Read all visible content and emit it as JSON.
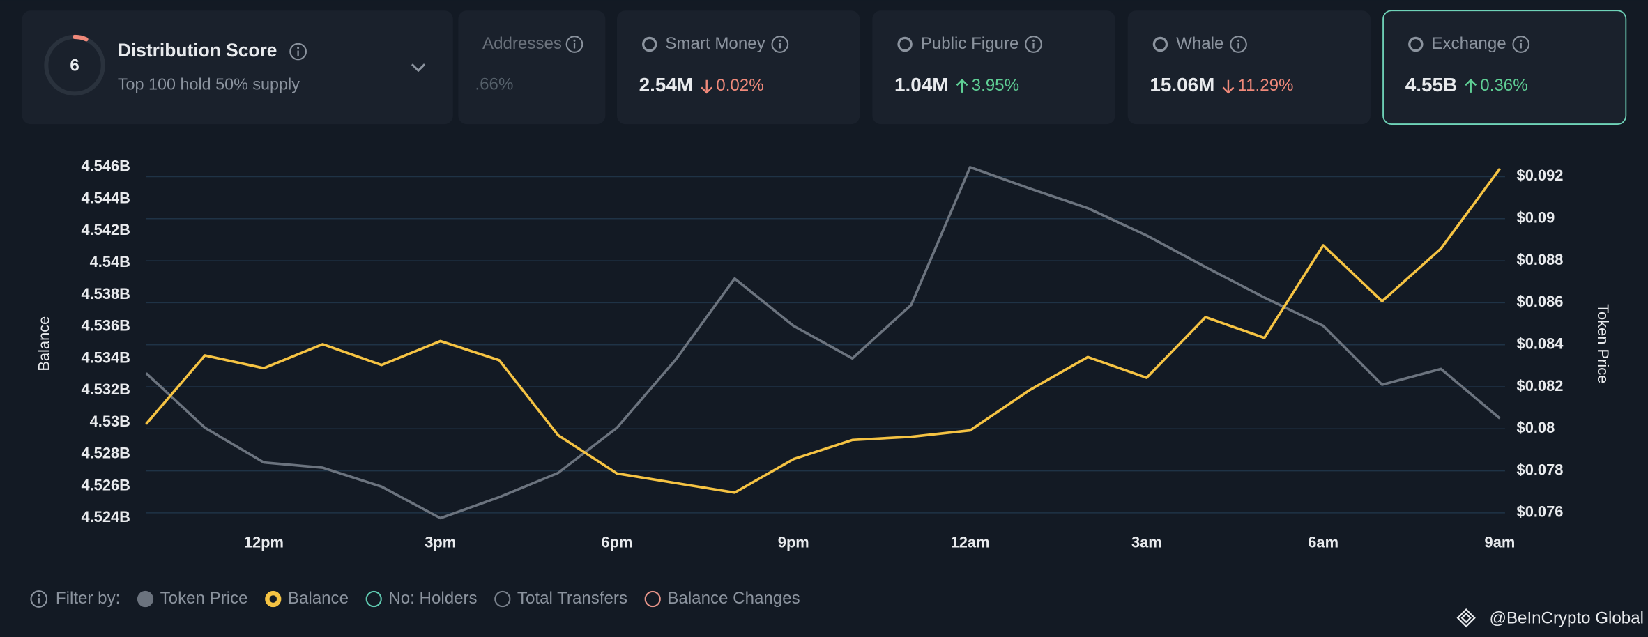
{
  "score_card": {
    "score": "6",
    "title": "Distribution Score",
    "subtitle": "Top 100 hold 50% supply"
  },
  "cards": [
    {
      "label": "Addresses",
      "change": ".66%",
      "direction": "none"
    },
    {
      "label": "Smart Money",
      "value": "2.54M",
      "change": "0.02%",
      "direction": "down"
    },
    {
      "label": "Public Figure",
      "value": "1.04M",
      "change": "3.95%",
      "direction": "up"
    },
    {
      "label": "Whale",
      "value": "15.06M",
      "change": "11.29%",
      "direction": "down"
    },
    {
      "label": "Exchange",
      "value": "4.55B",
      "change": "0.36%",
      "direction": "up",
      "selected": true
    }
  ],
  "chart_data": {
    "type": "line",
    "categories": [
      null,
      null,
      "12pm",
      null,
      null,
      "3pm",
      null,
      null,
      "6pm",
      null,
      null,
      "9pm",
      null,
      null,
      "12am",
      null,
      null,
      "3am",
      null,
      null,
      "6am",
      null,
      null,
      "9am"
    ],
    "y_label": "Balance",
    "y2_label": "Token Price",
    "ylim": [
      4.524,
      4.546
    ],
    "yticks": [
      {
        "value": 4.524,
        "label": "4.524B"
      },
      {
        "value": 4.526,
        "label": "4.526B"
      },
      {
        "value": 4.528,
        "label": "4.528B"
      },
      {
        "value": 4.53,
        "label": "4.53B"
      },
      {
        "value": 4.532,
        "label": "4.532B"
      },
      {
        "value": 4.534,
        "label": "4.534B"
      },
      {
        "value": 4.536,
        "label": "4.536B"
      },
      {
        "value": 4.538,
        "label": "4.538B"
      },
      {
        "value": 4.54,
        "label": "4.54B"
      },
      {
        "value": 4.542,
        "label": "4.542B"
      },
      {
        "value": 4.544,
        "label": "4.544B"
      },
      {
        "value": 4.546,
        "label": "4.546B"
      }
    ],
    "y2lim": [
      0.07575,
      0.09245
    ],
    "y2ticks": [
      {
        "value": 0.076,
        "label": "$0.076"
      },
      {
        "value": 0.078,
        "label": "$0.078"
      },
      {
        "value": 0.08,
        "label": "$0.08"
      },
      {
        "value": 0.082,
        "label": "$0.082"
      },
      {
        "value": 0.084,
        "label": "$0.084"
      },
      {
        "value": 0.086,
        "label": "$0.086"
      },
      {
        "value": 0.088,
        "label": "$0.088"
      },
      {
        "value": 0.09,
        "label": "$0.09"
      },
      {
        "value": 0.092,
        "label": "$0.092"
      }
    ],
    "grid": "y2",
    "series": [
      {
        "name": "Token Price",
        "color": "#6b737e",
        "axis": "y2",
        "values": [
          0.08265,
          0.08005,
          0.0784,
          0.07815,
          0.07725,
          0.07575,
          0.07675,
          0.0779,
          0.08005,
          0.0833,
          0.08715,
          0.0849,
          0.08335,
          0.0859,
          0.09245,
          0.09145,
          0.0905,
          0.0892,
          0.0877,
          0.08625,
          0.0849,
          0.0821,
          0.08285,
          0.0805
        ]
      },
      {
        "name": "Balance",
        "color": "#f5c343",
        "values": [
          4.5299,
          4.5342,
          4.5334,
          4.5349,
          4.5336,
          4.5351,
          4.5339,
          4.5292,
          4.5268,
          4.5262,
          4.5256,
          4.5277,
          4.5289,
          4.5291,
          4.5295,
          4.532,
          4.5341,
          4.5328,
          4.5366,
          4.5353,
          4.5411,
          4.5376,
          4.5409,
          4.5459
        ]
      }
    ],
    "filter_label": "Filter by:",
    "other_filters": [
      {
        "name": "No: Holders",
        "color": "#5fc9b0"
      },
      {
        "name": "Total Transfers",
        "color": "#7a828d"
      },
      {
        "name": "Balance Changes",
        "color": "#e8958a"
      }
    ]
  },
  "watermark": "@BeInCrypto Global"
}
